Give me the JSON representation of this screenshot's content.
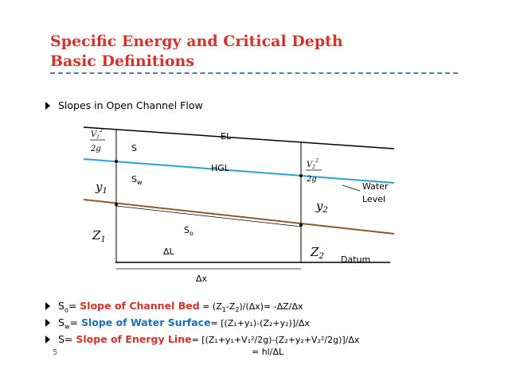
{
  "slide": {
    "title_line1": "Specific Energy and Critical Depth",
    "title_line2": "Basic Definitions",
    "page_number": "5"
  },
  "bullets": {
    "intro": "Slopes in Open Channel Flow",
    "so_label": "S",
    "so_sub": "o",
    "so_eq": "= ",
    "so_name": "Slope of Channel Bed",
    "so_formula_a": " = (Z",
    "so_formula_b": "-Z",
    "so_formula_c": ")/(Δx)= -ΔZ/Δx",
    "sw_label": "S",
    "sw_sub": "w",
    "sw_eq": "= ",
    "sw_name": "Slope of Water Surface",
    "sw_formula": "= [(Z₁+y₁)-(Z₂+y₂)]/Δx",
    "s_label": "S= ",
    "s_name": "Slope of Energy Line",
    "s_formula": "= [(Z₁+y₁+V₁²/2g)-(Z₂+y₂+V₂²/2g)]/Δx",
    "s_formula2": "= hl/ΔL"
  },
  "diagram": {
    "el_label": "EL",
    "hgl_label": "HGL",
    "s_label": "S",
    "sw_label": "S",
    "sw_sub": "w",
    "so_label": "S",
    "so_sub": "o",
    "delta_l": "ΔL",
    "delta_x": "Δx",
    "datum": "Datum",
    "water_level_1": "Water",
    "water_level_2": "Level",
    "y1": "y",
    "y1_sub": "1",
    "y2": "y",
    "y2_sub": "2",
    "z1": "Z",
    "z1_sub": "1",
    "z2": "Z",
    "z2_sub": "2",
    "v1": "V",
    "v1_sub": "1",
    "v2": "V",
    "v2_sub": "2",
    "sq": "2",
    "two_g": "2g",
    "colors": {
      "energy_line": "#000000",
      "hgl": "#29a3d6",
      "bed": "#8b5a2b"
    }
  }
}
